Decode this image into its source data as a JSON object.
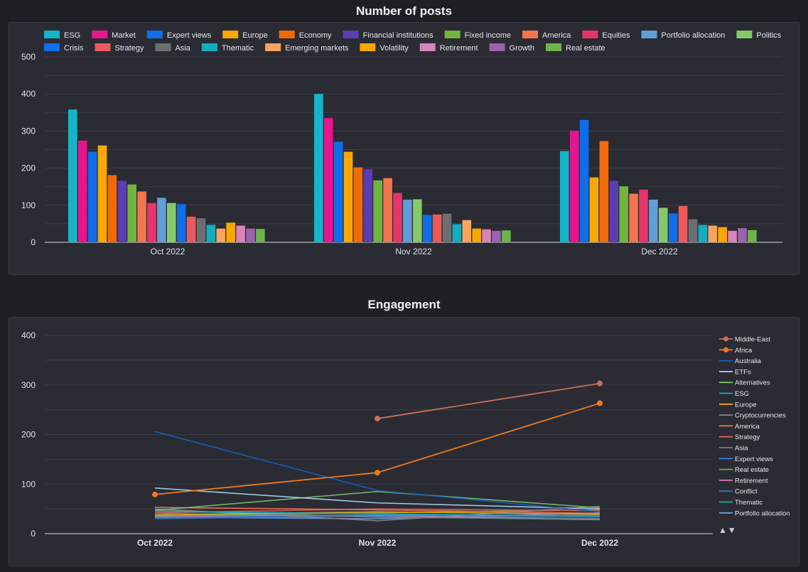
{
  "chart_data": [
    {
      "type": "bar",
      "title": "Number of posts",
      "categories": [
        "Oct 2022",
        "Nov 2022",
        "Dec 2022"
      ],
      "ylim": [
        0,
        500
      ],
      "yticks": [
        0,
        100,
        200,
        300,
        400,
        500
      ],
      "grid": true,
      "legend_position": "top",
      "series": [
        {
          "name": "ESG",
          "color": "#16b4c9",
          "values": [
            358,
            400,
            246
          ]
        },
        {
          "name": "Market",
          "color": "#e5158e",
          "values": [
            274,
            335,
            301
          ]
        },
        {
          "name": "Expert views",
          "color": "#0f6ee8",
          "values": [
            244,
            271,
            330
          ]
        },
        {
          "name": "Europe",
          "color": "#f9a800",
          "values": [
            261,
            244,
            175
          ]
        },
        {
          "name": "Economy",
          "color": "#f06a0a",
          "values": [
            181,
            202,
            273
          ]
        },
        {
          "name": "Financial institutions",
          "color": "#5b3db4",
          "values": [
            166,
            197,
            166
          ]
        },
        {
          "name": "Fixed income",
          "color": "#72b43e",
          "values": [
            156,
            167,
            151
          ]
        },
        {
          "name": "America",
          "color": "#f4754d",
          "values": [
            137,
            173,
            131
          ]
        },
        {
          "name": "Equities",
          "color": "#e5366a",
          "values": [
            106,
            133,
            142
          ]
        },
        {
          "name": "Portfolio allocation",
          "color": "#609ed7",
          "values": [
            120,
            115,
            115
          ]
        },
        {
          "name": "Politics",
          "color": "#86c96a",
          "values": [
            106,
            116,
            93
          ]
        },
        {
          "name": "Crisis",
          "color": "#0f6ee8",
          "values": [
            103,
            74,
            78
          ]
        },
        {
          "name": "Strategy",
          "color": "#ea5a5d",
          "values": [
            69,
            75,
            98
          ]
        },
        {
          "name": "Asia",
          "color": "#6e6e70",
          "values": [
            65,
            77,
            62
          ]
        },
        {
          "name": "Thematic",
          "color": "#12adc1",
          "values": [
            47,
            49,
            47
          ]
        },
        {
          "name": "Emerging markets",
          "color": "#f9a45e",
          "values": [
            37,
            60,
            45
          ]
        },
        {
          "name": "Volatility",
          "color": "#f9a800",
          "values": [
            53,
            37,
            41
          ]
        },
        {
          "name": "Retirement",
          "color": "#d883b9",
          "values": [
            45,
            35,
            31
          ]
        },
        {
          "name": "Growth",
          "color": "#9b63ad",
          "values": [
            37,
            31,
            38
          ]
        },
        {
          "name": "Real estate",
          "color": "#6db34c",
          "values": [
            36,
            32,
            33
          ]
        }
      ]
    },
    {
      "type": "line",
      "title": "Engagement",
      "x": [
        "Oct 2022",
        "Nov 2022",
        "Dec 2022"
      ],
      "ylim": [
        0,
        400
      ],
      "yticks": [
        0,
        100,
        200,
        300,
        400
      ],
      "grid": true,
      "legend_position": "right",
      "series": [
        {
          "name": "Middle-East",
          "color": "#c9705a",
          "marker": true,
          "values": [
            null,
            232,
            303
          ]
        },
        {
          "name": "Africa",
          "color": "#f07a1a",
          "marker": true,
          "values": [
            79,
            123,
            263
          ]
        },
        {
          "name": "Australia",
          "color": "#1463c4",
          "values": [
            206,
            87,
            44
          ]
        },
        {
          "name": "ETFs",
          "color": "#a8d8f2",
          "values": [
            92,
            62,
            50
          ]
        },
        {
          "name": "Alternatives",
          "color": "#7cc26a",
          "values": [
            47,
            85,
            52
          ]
        },
        {
          "name": "ESG",
          "color": "#16b4c9",
          "values": [
            45,
            40,
            35
          ]
        },
        {
          "name": "Europe",
          "color": "#f9a800",
          "values": [
            38,
            44,
            39
          ]
        },
        {
          "name": "Cryptocurrencies",
          "color": "#8a8a8e",
          "values": [
            50,
            26,
            55
          ]
        },
        {
          "name": "America",
          "color": "#f4754d",
          "values": [
            53,
            48,
            41
          ]
        },
        {
          "name": "Strategy",
          "color": "#ea5a5d",
          "values": [
            42,
            50,
            46
          ]
        },
        {
          "name": "Asia",
          "color": "#7d7d80",
          "values": [
            47,
            33,
            30
          ]
        },
        {
          "name": "Expert views",
          "color": "#2f7fe6",
          "values": [
            32,
            38,
            37
          ]
        },
        {
          "name": "Real estate",
          "color": "#6db34c",
          "values": [
            36,
            42,
            48
          ]
        },
        {
          "name": "Retirement",
          "color": "#e07bb8",
          "values": [
            35,
            37,
            29
          ]
        },
        {
          "name": "Conflict",
          "color": "#3d6fb8",
          "values": [
            30,
            36,
            33
          ]
        },
        {
          "name": "Thematic",
          "color": "#12adc1",
          "values": [
            41,
            34,
            28
          ]
        },
        {
          "name": "Portfolio allocation",
          "color": "#6b9fd8",
          "values": [
            33,
            30,
            42
          ]
        }
      ]
    }
  ]
}
